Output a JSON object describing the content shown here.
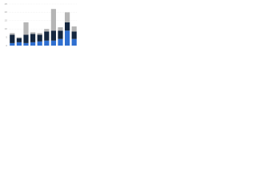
{
  "chart_data": {
    "type": "stacked-bar",
    "categories": [
      null,
      null,
      null,
      null,
      null,
      null,
      null,
      null,
      null,
      null
    ],
    "series": [
      {
        "color": "#2f6fd0",
        "values": [
          1.5,
          2,
          1.5,
          2,
          2.5,
          3,
          3,
          4,
          9,
          4
        ]
      },
      {
        "color": "#14263f",
        "values": [
          5,
          2.5,
          5,
          5,
          4,
          5.5,
          6,
          5,
          5,
          4.5
        ]
      },
      {
        "color": "#b5b5b5",
        "values": [
          1,
          0.5,
          7.5,
          1,
          1,
          1.5,
          13,
          2,
          6,
          3
        ]
      }
    ],
    "ylim": [
      0,
      25
    ],
    "yticks": [
      0,
      5,
      10,
      15,
      20,
      25
    ],
    "grid": true
  }
}
